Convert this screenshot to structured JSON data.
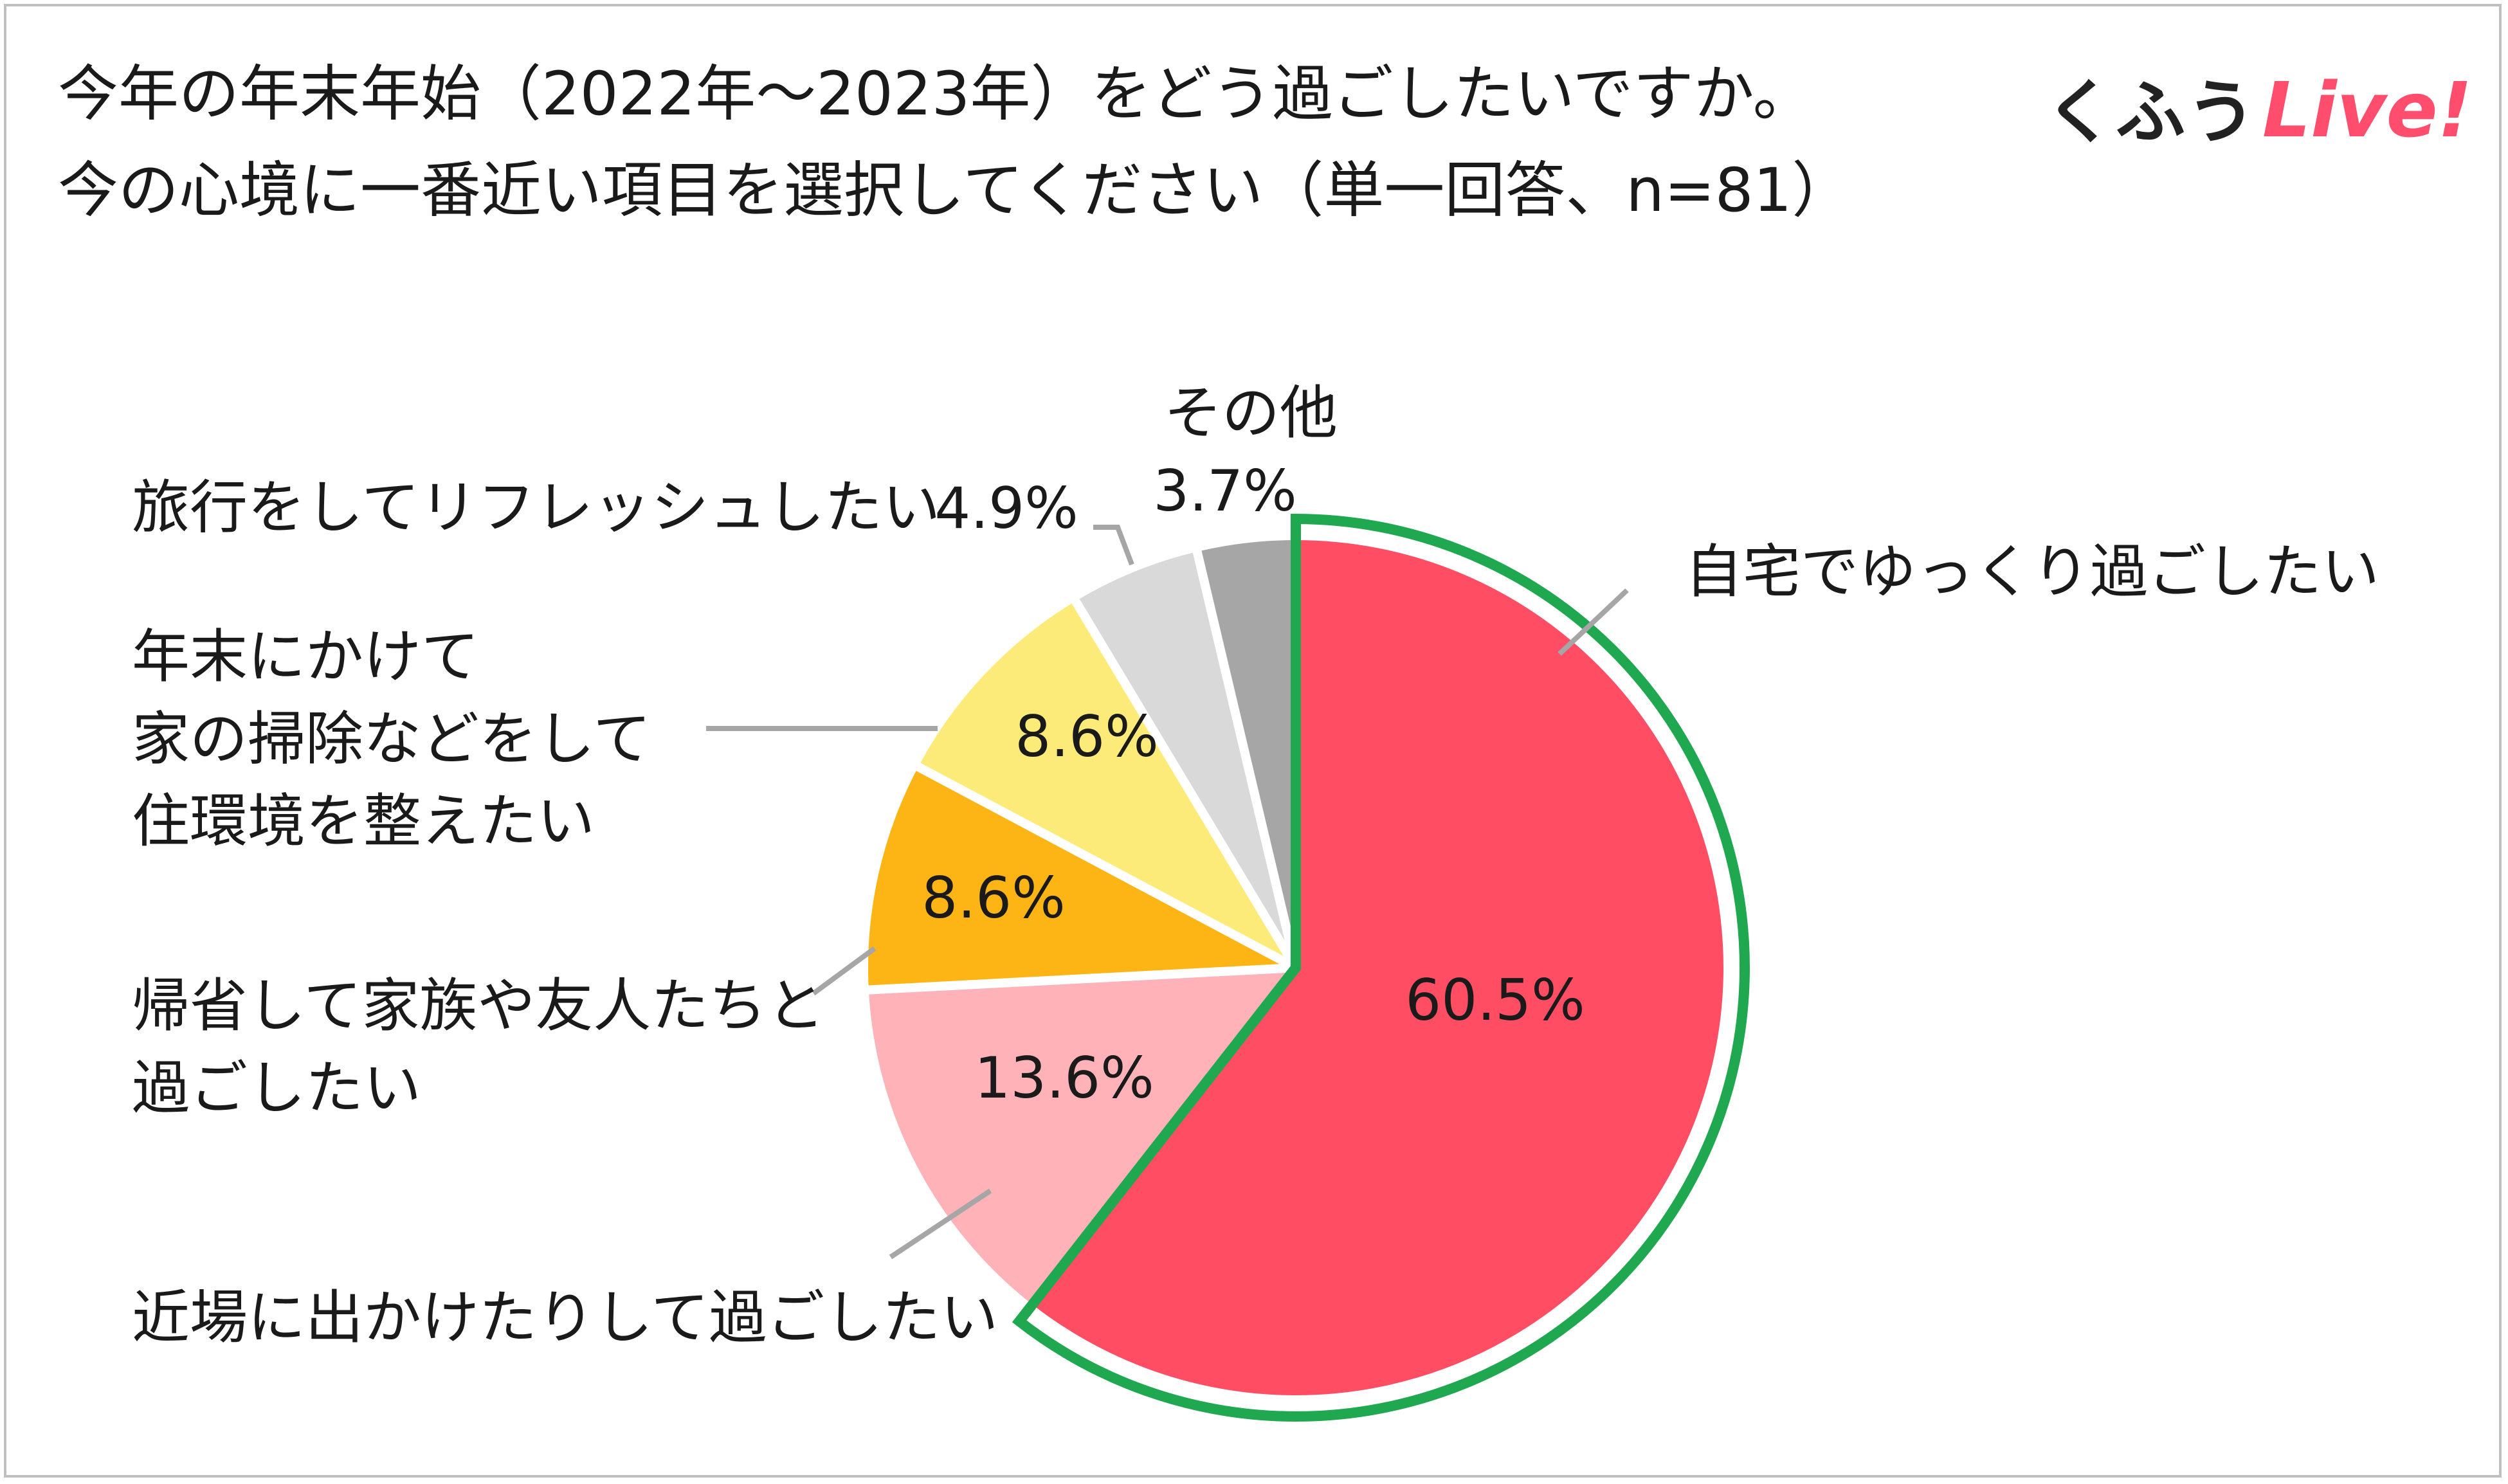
{
  "title": {
    "line1": "今年の年末年始（2022年～2023年）をどう過ごしたいですか。",
    "line2": "今の心境に一番近い項目を選択してください（単一回答、n=81）"
  },
  "logo": {
    "jp": "くふう",
    "live": "Live!"
  },
  "chart_data": {
    "type": "pie",
    "start_angle_deg": 0,
    "direction": "clockwise",
    "highlight_index": 0,
    "highlight_color": "#1fa84f",
    "slices": [
      {
        "label": "自宅でゆっくり過ごしたい",
        "label_lines": [
          "自宅でゆっくり過ごしたい"
        ],
        "value": 60.5,
        "display": "60.5%",
        "color": "#ff4d64"
      },
      {
        "label": "近場に出かけたりして過ごしたい",
        "label_lines": [
          "近場に出かけたりして過ごしたい"
        ],
        "value": 13.6,
        "display": "13.6%",
        "color": "#ffb3b8"
      },
      {
        "label": "帰省して家族や友人たちと過ごしたい",
        "label_lines": [
          "帰省して家族や友人たちと",
          "過ごしたい"
        ],
        "value": 8.6,
        "display": "8.6%",
        "color": "#fdb515"
      },
      {
        "label": "年末にかけて家の掃除などをして住環境を整えたい",
        "label_lines": [
          "年末にかけて",
          "家の掃除などをして",
          "住環境を整えたい"
        ],
        "value": 8.6,
        "display": "8.6%",
        "color": "#fceb78"
      },
      {
        "label": "旅行をしてリフレッシュしたい",
        "label_lines": [
          "旅行をしてリフレッシュしたい"
        ],
        "value": 4.9,
        "display": "4.9%",
        "color": "#d9d9d9"
      },
      {
        "label": "その他",
        "label_lines": [
          "その他"
        ],
        "value": 3.7,
        "display": "3.7%",
        "color": "#a6a6a6"
      }
    ]
  }
}
